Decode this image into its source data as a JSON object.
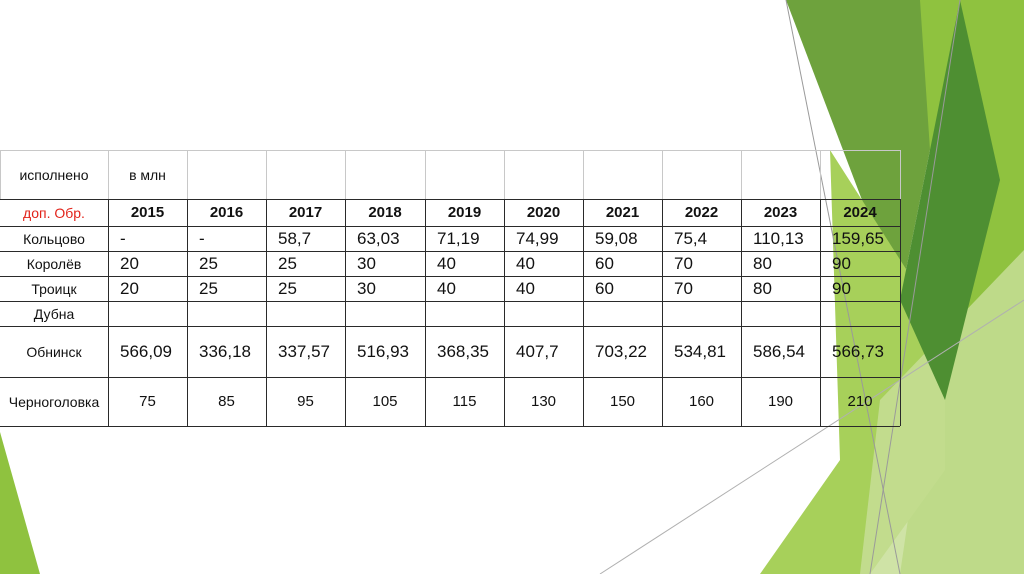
{
  "accent_colors": {
    "green_dark": "#4e8f32",
    "green_mid": "#6ea23d",
    "green_light": "#8fc23f",
    "green_pale": "#c7de96",
    "header_red": "#e2231a"
  },
  "table": {
    "header_top": {
      "col1": "исполнено",
      "col2": "в млн"
    },
    "header_row": {
      "label": "доп. Обр.",
      "years": [
        "2015",
        "2016",
        "2017",
        "2018",
        "2019",
        "2020",
        "2021",
        "2022",
        "2023",
        "2024"
      ]
    },
    "rows": [
      {
        "name": "Кольцово",
        "values": [
          "-",
          "-",
          "58,7",
          "63,03",
          "71,19",
          "74,99",
          "59,08",
          "75,4",
          "110,13",
          "159,65"
        ]
      },
      {
        "name": "Королёв",
        "values": [
          "20",
          "25",
          "25",
          "30",
          "40",
          "40",
          "60",
          "70",
          "80",
          "90"
        ]
      },
      {
        "name": "Троицк",
        "values": [
          "20",
          "25",
          "25",
          "30",
          "40",
          "40",
          "60",
          "70",
          "80",
          "90"
        ]
      },
      {
        "name": "Дубна",
        "values": [
          "",
          "",
          "",
          "",
          "",
          "",
          "",
          "",
          "",
          ""
        ]
      },
      {
        "name": "Обнинск",
        "values": [
          "566,09",
          "336,18",
          "337,57",
          "516,93",
          "368,35",
          "407,7",
          "703,22",
          "534,81",
          "586,54",
          "566,73"
        ]
      },
      {
        "name": "Черноголовка",
        "values": [
          "75",
          "85",
          "95",
          "105",
          "115",
          "130",
          "150",
          "160",
          "190",
          "210"
        ]
      }
    ]
  }
}
